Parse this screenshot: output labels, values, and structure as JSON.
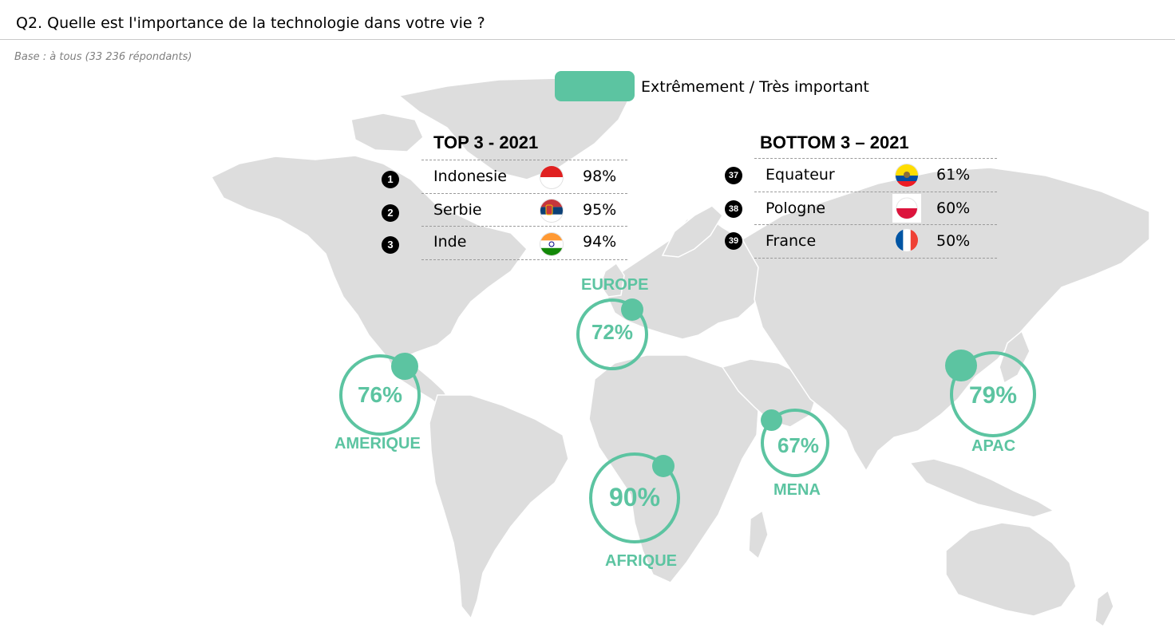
{
  "header": {
    "title": "Q2. Quelle est l'importance de la technologie dans votre vie ?",
    "base": "Base : à tous (33 236 répondants)"
  },
  "legend": {
    "label": "Extrêmement / Très important",
    "color": "#5cc4a1"
  },
  "colors": {
    "accent": "#5cc4a1",
    "land": "#dddddd"
  },
  "top3": {
    "title": "TOP 3 - 2021",
    "rows": [
      {
        "rank": "1",
        "country": "Indonesie",
        "value": "98%",
        "flag": "indonesia-flag-icon"
      },
      {
        "rank": "2",
        "country": "Serbie",
        "value": "95%",
        "flag": "serbia-flag-icon"
      },
      {
        "rank": "3",
        "country": "Inde",
        "value": "94%",
        "flag": "india-flag-icon"
      }
    ]
  },
  "bottom3": {
    "title": "BOTTOM 3 – 2021",
    "rows": [
      {
        "rank": "37",
        "country": "Equateur",
        "value": "61%",
        "flag": "ecuador-flag-icon"
      },
      {
        "rank": "38",
        "country": "Pologne",
        "value": "60%",
        "flag": "poland-flag-icon"
      },
      {
        "rank": "39",
        "country": "France",
        "value": "50%",
        "flag": "france-flag-icon"
      }
    ]
  },
  "regions": {
    "europe": {
      "name": "EUROPE",
      "value": "72%"
    },
    "amerique": {
      "name": "AMERIQUE",
      "value": "76%"
    },
    "afrique": {
      "name": "AFRIQUE",
      "value": "90%"
    },
    "mena": {
      "name": "MENA",
      "value": "67%"
    },
    "apac": {
      "name": "APAC",
      "value": "79%"
    }
  }
}
